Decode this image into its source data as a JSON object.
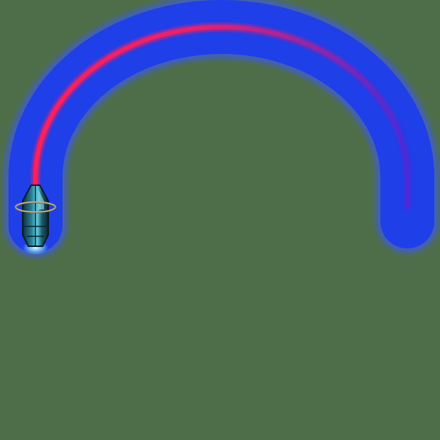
{
  "scene": {
    "background_color": "#4e6e4a",
    "arc": {
      "glow_color": "#1f3fe8",
      "glow_edge_color": "#3a56ff",
      "core_color_start": "#ff1f5a",
      "core_color_end": "#4a2ad8"
    },
    "projectile": {
      "icon": "capsule-projectile-icon",
      "body_color": "#1d5a6e",
      "highlight_color": "#5fd4e6",
      "ring_color": "#c9b38a",
      "glow_color": "#8fe3ff"
    }
  }
}
